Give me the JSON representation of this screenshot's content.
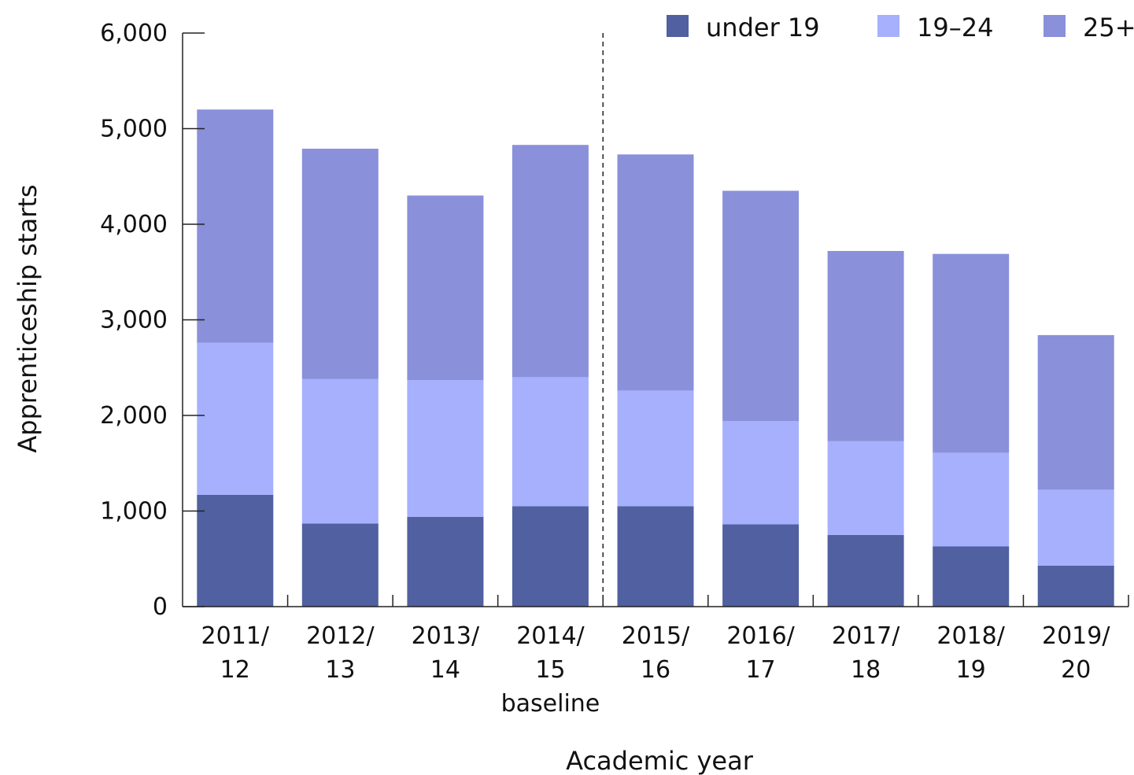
{
  "chart_data": {
    "type": "bar",
    "stacked": true,
    "categories": [
      [
        "2011/",
        "12"
      ],
      [
        "2012/",
        "13"
      ],
      [
        "2013/",
        "14"
      ],
      [
        "2014/",
        "15",
        "baseline"
      ],
      [
        "2015/",
        "16"
      ],
      [
        "2016/",
        "17"
      ],
      [
        "2017/",
        "18"
      ],
      [
        "2018/",
        "19"
      ],
      [
        "2019/",
        "20"
      ]
    ],
    "series": [
      {
        "name": "under 19",
        "color": "#5060a0",
        "values": [
          1170,
          870,
          940,
          1050,
          1050,
          860,
          750,
          630,
          430
        ]
      },
      {
        "name": "19–24",
        "color": "#a6b0fc",
        "values": [
          1590,
          1510,
          1430,
          1350,
          1210,
          1080,
          980,
          980,
          790
        ]
      },
      {
        "name": "25+",
        "color": "#8a90da",
        "values": [
          2440,
          2410,
          1930,
          2430,
          2470,
          2410,
          1990,
          2080,
          1620
        ]
      }
    ],
    "ylabel": "Apprenticeship starts",
    "xlabel": "Academic year",
    "ylim": [
      0,
      6000
    ],
    "yticks": [
      "0",
      "1,000",
      "2,000",
      "3,000",
      "4,000",
      "5,000",
      "6,000"
    ],
    "reference_line": {
      "after_category_index": 3,
      "style": "dashed"
    },
    "legend_position": "top-right",
    "grid": false
  }
}
